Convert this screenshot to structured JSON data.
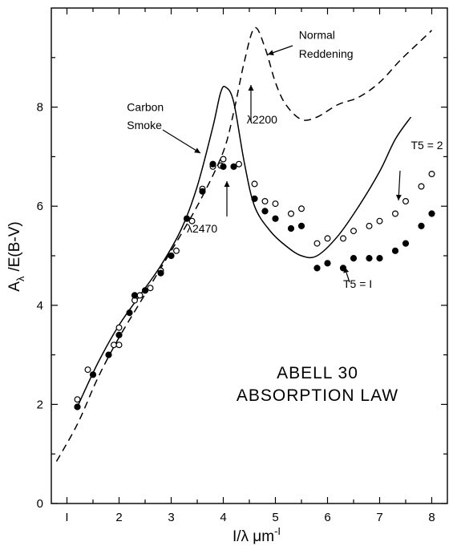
{
  "chart_data": {
    "type": "scatter",
    "title": "ABELL 30",
    "subtitle": "ABSORPTION LAW",
    "xlabel": "I/λ μm",
    "xlabel_sup": "-I",
    "ylabel": "A",
    "ylabel_sub": "λ",
    "ylabel_rest": "/E(B-V)",
    "xlim": [
      0.7,
      8.3
    ],
    "ylim": [
      0,
      10
    ],
    "x_ticks": [
      {
        "v": 1,
        "label": "I"
      },
      {
        "v": 2,
        "label": "2"
      },
      {
        "v": 3,
        "label": "3"
      },
      {
        "v": 4,
        "label": "4"
      },
      {
        "v": 5,
        "label": "5"
      },
      {
        "v": 6,
        "label": "6"
      },
      {
        "v": 7,
        "label": "7"
      },
      {
        "v": 8,
        "label": "8"
      }
    ],
    "y_ticks": [
      {
        "v": 0,
        "label": "0"
      },
      {
        "v": 2,
        "label": "2"
      },
      {
        "v": 4,
        "label": "4"
      },
      {
        "v": 6,
        "label": "6"
      },
      {
        "v": 8,
        "label": "8"
      }
    ],
    "series": [
      {
        "name": "Normal Reddening",
        "style": "dashed",
        "points": [
          [
            0.8,
            0.85
          ],
          [
            1.2,
            1.6
          ],
          [
            1.6,
            2.55
          ],
          [
            2.0,
            3.35
          ],
          [
            2.4,
            4.05
          ],
          [
            2.8,
            4.75
          ],
          [
            3.2,
            5.45
          ],
          [
            3.6,
            6.2
          ],
          [
            4.0,
            7.1
          ],
          [
            4.2,
            7.9
          ],
          [
            4.4,
            8.9
          ],
          [
            4.6,
            9.6
          ],
          [
            4.8,
            9.2
          ],
          [
            5.0,
            8.5
          ],
          [
            5.2,
            8.05
          ],
          [
            5.5,
            7.75
          ],
          [
            5.8,
            7.8
          ],
          [
            6.2,
            8.05
          ],
          [
            6.6,
            8.2
          ],
          [
            7.0,
            8.5
          ],
          [
            7.4,
            8.95
          ],
          [
            7.8,
            9.35
          ],
          [
            8.0,
            9.55
          ]
        ]
      },
      {
        "name": "Carbon Smoke",
        "style": "solid",
        "points": [
          [
            1.2,
            1.95
          ],
          [
            1.6,
            2.85
          ],
          [
            2.0,
            3.6
          ],
          [
            2.4,
            4.2
          ],
          [
            2.8,
            4.8
          ],
          [
            3.2,
            5.55
          ],
          [
            3.5,
            6.4
          ],
          [
            3.8,
            7.6
          ],
          [
            3.95,
            8.3
          ],
          [
            4.05,
            8.4
          ],
          [
            4.2,
            8.1
          ],
          [
            4.4,
            6.9
          ],
          [
            4.6,
            6.0
          ],
          [
            4.9,
            5.5
          ],
          [
            5.2,
            5.2
          ],
          [
            5.5,
            5.0
          ],
          [
            5.8,
            5.0
          ],
          [
            6.2,
            5.4
          ],
          [
            6.6,
            6.0
          ],
          [
            7.0,
            6.7
          ],
          [
            7.3,
            7.35
          ],
          [
            7.6,
            7.8
          ]
        ]
      },
      {
        "name": "T5 = 2",
        "marker": "open",
        "points": [
          [
            1.2,
            2.1
          ],
          [
            1.4,
            2.7
          ],
          [
            1.9,
            3.2
          ],
          [
            2.0,
            3.55
          ],
          [
            2.3,
            4.1
          ],
          [
            2.6,
            4.35
          ],
          [
            2.8,
            4.7
          ],
          [
            3.1,
            5.1
          ],
          [
            3.4,
            5.7
          ],
          [
            3.6,
            6.35
          ],
          [
            3.95,
            6.82
          ],
          [
            4.3,
            6.85
          ],
          [
            4.6,
            6.45
          ],
          [
            4.8,
            6.1
          ],
          [
            5.0,
            6.05
          ],
          [
            5.3,
            5.85
          ],
          [
            5.5,
            5.95
          ],
          [
            5.8,
            5.25
          ],
          [
            6.0,
            5.35
          ],
          [
            6.3,
            5.35
          ],
          [
            6.5,
            5.5
          ],
          [
            6.8,
            5.6
          ],
          [
            7.0,
            5.7
          ],
          [
            7.3,
            5.85
          ],
          [
            7.5,
            6.1
          ],
          [
            7.8,
            6.4
          ],
          [
            8.0,
            6.65
          ],
          [
            2.0,
            3.2
          ],
          [
            2.4,
            4.2
          ],
          [
            3.8,
            6.8
          ],
          [
            4.0,
            6.95
          ]
        ]
      },
      {
        "name": "T5 = I",
        "marker": "filled",
        "points": [
          [
            1.2,
            1.95
          ],
          [
            1.5,
            2.6
          ],
          [
            1.8,
            3.0
          ],
          [
            2.0,
            3.4
          ],
          [
            2.2,
            3.85
          ],
          [
            2.5,
            4.3
          ],
          [
            2.8,
            4.65
          ],
          [
            3.0,
            5.0
          ],
          [
            3.3,
            5.75
          ],
          [
            3.6,
            6.3
          ],
          [
            3.8,
            6.85
          ],
          [
            4.0,
            6.8
          ],
          [
            4.2,
            6.8
          ],
          [
            4.6,
            6.15
          ],
          [
            4.8,
            5.9
          ],
          [
            5.0,
            5.75
          ],
          [
            5.3,
            5.55
          ],
          [
            5.5,
            5.6
          ],
          [
            5.8,
            4.75
          ],
          [
            6.0,
            4.85
          ],
          [
            6.3,
            4.75
          ],
          [
            6.5,
            4.95
          ],
          [
            6.8,
            4.95
          ],
          [
            7.0,
            4.95
          ],
          [
            7.3,
            5.1
          ],
          [
            7.5,
            5.25
          ],
          [
            7.8,
            5.6
          ],
          [
            8.0,
            5.85
          ],
          [
            2.3,
            4.2
          ]
        ]
      }
    ],
    "annotations": [
      {
        "text": "Normal",
        "x": 5.45,
        "y": 9.38
      },
      {
        "text": "Reddening",
        "x": 5.45,
        "y": 9.0
      },
      {
        "text": "Carbon",
        "x": 2.15,
        "y": 7.92
      },
      {
        "text": "Smoke",
        "x": 2.15,
        "y": 7.56
      },
      {
        "text": "λ2200",
        "x": 4.45,
        "y": 7.67
      },
      {
        "text": "λ2470",
        "x": 3.3,
        "y": 5.47
      },
      {
        "text": "T5 = 2",
        "x": 7.6,
        "y": 7.15
      },
      {
        "text": "T5 = I",
        "x": 6.3,
        "y": 4.35
      }
    ],
    "grid": false
  }
}
